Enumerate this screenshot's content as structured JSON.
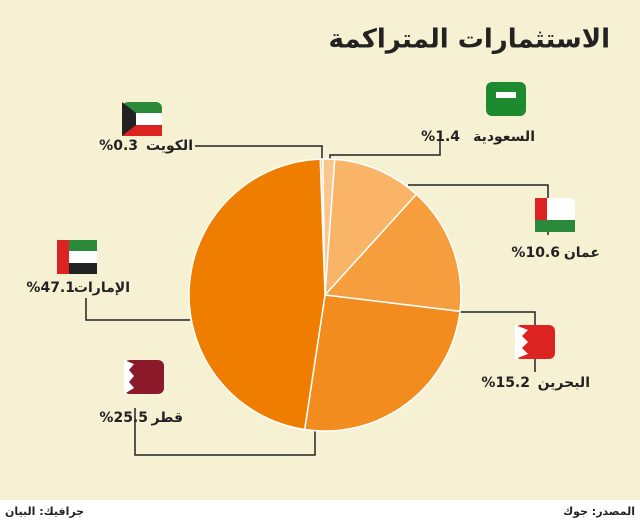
{
  "chart_data": {
    "type": "pie",
    "title": "الاستثمارات المتراكمة",
    "categories": [
      "الكويت",
      "السعودية",
      "عمان",
      "البحرين",
      "قطر",
      "الإمارات"
    ],
    "values": [
      0.3,
      1.4,
      10.6,
      15.2,
      25.5,
      47.1
    ],
    "value_labels": [
      "%0.3",
      "%1.4",
      "%10.6",
      "%15.2",
      "%25.5",
      "%47.1"
    ],
    "colors": [
      "#fbc68c",
      "#fbc68c",
      "#f9b468",
      "#f69d3e",
      "#f38c1f",
      "#ef7d00"
    ],
    "source": "المصدر: جوك",
    "credit": "جرافيك: البيان"
  }
}
